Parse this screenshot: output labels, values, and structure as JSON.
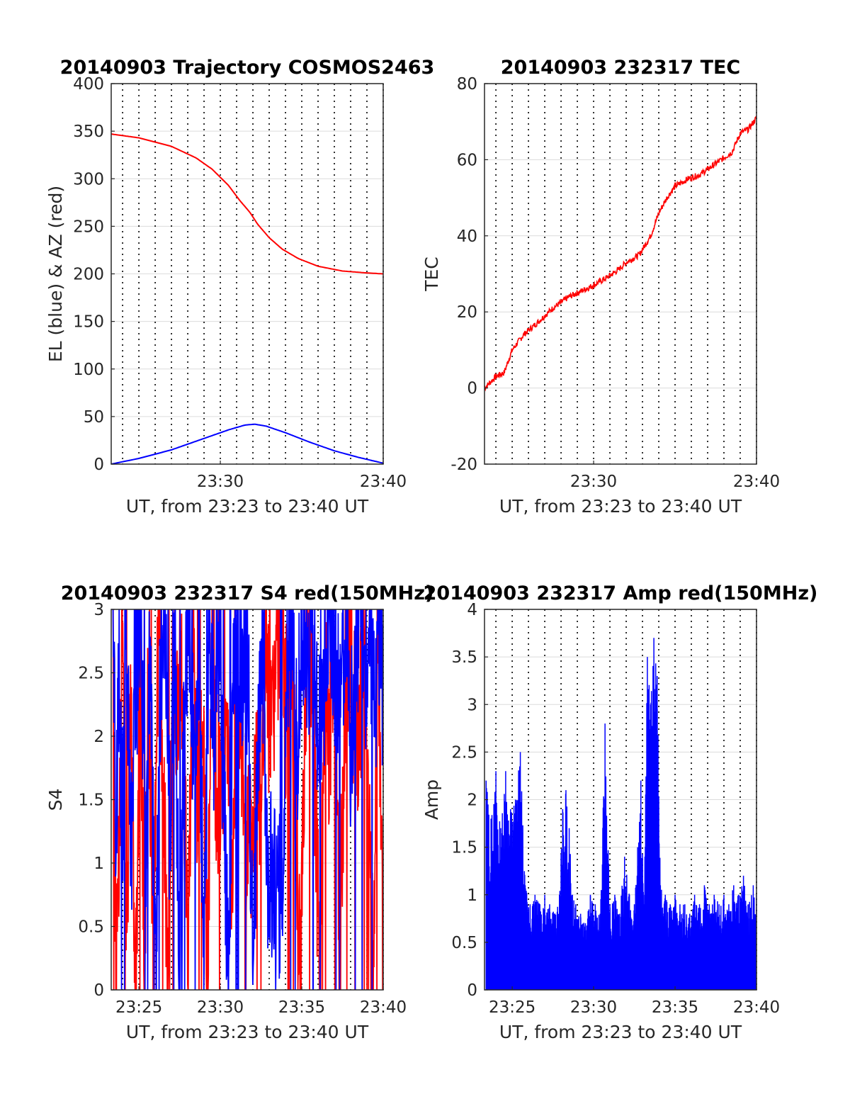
{
  "chart_data": [
    {
      "type": "line",
      "title": "20140903 Trajectory COSMOS2463",
      "xlabel": "UT, from 23:23 to 23:40 UT",
      "ylabel": "EL (blue) & AZ (red)",
      "x_ticks": [
        "23:30",
        "23:40"
      ],
      "x_tick_minutes": [
        30,
        40
      ],
      "xlim_minutes": [
        23.3,
        40
      ],
      "ylim": [
        0,
        400
      ],
      "y_ticks": [
        "0",
        "50",
        "100",
        "150",
        "200",
        "250",
        "300",
        "350",
        "400"
      ],
      "y_tick_values": [
        0,
        50,
        100,
        150,
        200,
        250,
        300,
        350,
        400
      ],
      "grid": true,
      "series": [
        {
          "color": "#ff0000",
          "x": [
            23.3,
            25,
            27,
            28.5,
            29.5,
            30.5,
            31.2,
            31.8,
            32.3,
            33,
            33.8,
            34.8,
            36,
            37.5,
            39,
            40
          ],
          "values": [
            347,
            343,
            334,
            322,
            310,
            293,
            277,
            265,
            252,
            238,
            226,
            216,
            208,
            203,
            201,
            200
          ]
        },
        {
          "color": "#0000ff",
          "x": [
            23.3,
            25,
            27,
            29,
            30.5,
            31.5,
            32.1,
            32.8,
            34,
            35.5,
            37,
            38.5,
            40
          ],
          "values": [
            0,
            6,
            15,
            27,
            36,
            41,
            42,
            40,
            33,
            23,
            14,
            7,
            1
          ]
        }
      ]
    },
    {
      "type": "line",
      "title": "20140903 232317 TEC",
      "xlabel": "UT, from 23:23 to 23:40 UT",
      "ylabel": "TEC",
      "x_ticks": [
        "23:30",
        "23:40"
      ],
      "x_tick_minutes": [
        30,
        40
      ],
      "xlim_minutes": [
        23.3,
        40
      ],
      "ylim": [
        -20,
        80
      ],
      "y_ticks": [
        "-20",
        "0",
        "20",
        "40",
        "60",
        "80"
      ],
      "y_tick_values": [
        -20,
        0,
        20,
        40,
        60,
        80
      ],
      "grid": true,
      "series": [
        {
          "color": "#ff0000",
          "x": [
            23.3,
            24,
            24.5,
            25,
            25.7,
            26.5,
            27.5,
            28.5,
            29.5,
            30,
            30.8,
            31.5,
            32,
            32.8,
            33.5,
            34,
            34.5,
            35,
            35.8,
            36.5,
            37.5,
            38.5,
            39,
            39.5,
            40
          ],
          "values": [
            0,
            3,
            4,
            10,
            14,
            17,
            21,
            24,
            26,
            27,
            29,
            31,
            33,
            35,
            40,
            46,
            50,
            53,
            55,
            56,
            59,
            62,
            67,
            68,
            71
          ]
        }
      ]
    },
    {
      "type": "line",
      "title": "20140903 232317 S4 red(150MHz)",
      "xlabel": "UT, from 23:23 to 23:40 UT",
      "ylabel": "S4",
      "x_ticks": [
        "23:25",
        "23:30",
        "23:35",
        "23:40"
      ],
      "x_tick_minutes": [
        25,
        30,
        35,
        40
      ],
      "xlim_minutes": [
        23.3,
        40
      ],
      "ylim": [
        0,
        3
      ],
      "y_ticks": [
        "0",
        "0.5",
        "1",
        "1.5",
        "2",
        "2.5",
        "3"
      ],
      "y_tick_values": [
        0,
        0.5,
        1,
        1.5,
        2,
        2.5,
        3
      ],
      "grid": true,
      "series": [
        {
          "color": "#ff0000",
          "x": [
            23.4,
            23.6,
            23.8,
            24,
            24.2,
            24.5,
            24.8,
            25.1,
            25.3,
            25.6,
            25.9,
            26.2,
            26.5,
            26.8,
            27.1,
            27.4,
            27.7,
            28,
            28.3,
            28.6,
            28.9,
            29.2,
            29.5,
            29.8,
            30.1,
            30.4,
            30.7,
            31,
            31.3,
            31.6,
            31.9,
            32.2,
            32.5,
            32.8,
            33.1,
            33.4,
            33.7,
            34,
            34.3,
            34.6,
            34.9,
            35.2,
            35.5,
            35.8,
            36.1,
            36.4,
            36.7,
            37,
            37.3,
            37.6,
            37.9,
            38.2,
            38.5,
            38.8,
            39.1,
            39.4,
            39.7,
            40
          ],
          "values": [
            2.8,
            0,
            1.5,
            3,
            0,
            2.6,
            0,
            3,
            0.1,
            2.5,
            0,
            3,
            1.8,
            0,
            2.7,
            1.9,
            2.4,
            0,
            3,
            1.4,
            2.1,
            0.2,
            2.6,
            1.3,
            1.7,
            2.2,
            1.1,
            1.6,
            1.9,
            1.3,
            1.0,
            1.8,
            1.5,
            2.6,
            1.9,
            2.4,
            3,
            2.1,
            2.9,
            1.6,
            0,
            2.3,
            3,
            1.7,
            0,
            2.5,
            1.9,
            2.8,
            0.3,
            1.7,
            2.6,
            2.2,
            1.9,
            2.7,
            1.5,
            0,
            3,
            0
          ],
          "mark_label_values": true
        },
        {
          "color": "#0000ff",
          "x": [
            23.4,
            23.6,
            23.8,
            24,
            24.2,
            24.5,
            24.8,
            25.1,
            25.4,
            25.7,
            26,
            26.3,
            26.6,
            26.9,
            27.2,
            27.5,
            27.8,
            28.1,
            28.4,
            28.7,
            29,
            29.3,
            29.6,
            29.9,
            30.2,
            30.5,
            30.8,
            31.1,
            31.4,
            31.7,
            32,
            32.3,
            32.6,
            32.9,
            33.2,
            33.5,
            33.8,
            34.1,
            34.4,
            34.7,
            35,
            35.3,
            35.6,
            35.9,
            36.2,
            36.5,
            36.8,
            37.1,
            37.4,
            37.7,
            38,
            38.3,
            38.6,
            38.9,
            39.2,
            39.5,
            39.8,
            40
          ],
          "values": [
            3,
            1.3,
            2.5,
            1.1,
            3,
            1.0,
            2.2,
            3,
            1.1,
            2.8,
            0,
            2.4,
            3,
            1.2,
            2.9,
            0,
            2.6,
            3,
            1.5,
            2.7,
            0,
            3,
            2.1,
            2.8,
            1.6,
            0,
            2.4,
            3,
            2.2,
            2.6,
            0,
            1.9,
            2.7,
            1.0,
            0.8,
            0.7,
            0.9,
            2.6,
            3,
            1.8,
            2.9,
            2.1,
            3,
            2.3,
            1.9,
            2.8,
            3,
            2.2,
            2.5,
            3,
            1.9,
            2.7,
            3,
            2.4,
            2.8,
            2.2,
            3,
            2.1
          ],
          "mark_label_values": true
        }
      ]
    },
    {
      "type": "line",
      "title": "20140903 232317 Amp red(150MHz)",
      "xlabel": "UT, from 23:23 to 23:40 UT",
      "ylabel": "Amp",
      "x_ticks": [
        "23:25",
        "23:30",
        "23:35",
        "23:40"
      ],
      "x_tick_minutes": [
        25,
        30,
        35,
        40
      ],
      "xlim_minutes": [
        23.3,
        40
      ],
      "ylim": [
        0,
        4
      ],
      "y_ticks": [
        "0",
        "0.5",
        "1",
        "1.5",
        "2",
        "2.5",
        "3",
        "3.5",
        "4"
      ],
      "y_tick_values": [
        0,
        0.5,
        1,
        1.5,
        2,
        2.5,
        3,
        3.5,
        4
      ],
      "grid": true,
      "series": [
        {
          "color": "#0000ff",
          "x": [
            23.4,
            23.7,
            24.0,
            24.3,
            24.6,
            24.9,
            25.2,
            25.5,
            25.8,
            26.1,
            26.4,
            26.7,
            27.0,
            27.3,
            27.6,
            27.9,
            28.1,
            28.3,
            28.5,
            28.7,
            28.9,
            29.2,
            29.5,
            29.8,
            30.1,
            30.4,
            30.7,
            31.0,
            31.3,
            31.6,
            31.9,
            32.2,
            32.5,
            32.7,
            32.9,
            33.1,
            33.3,
            33.5,
            33.7,
            33.9,
            34.1,
            34.4,
            34.7,
            35.0,
            35.3,
            35.6,
            35.9,
            36.2,
            36.5,
            36.8,
            37.1,
            37.4,
            37.7,
            38.0,
            38.3,
            38.6,
            38.9,
            39.2,
            39.5,
            39.8,
            40.0
          ],
          "peaks": [
            2.2,
            1.8,
            2.3,
            1.7,
            2.3,
            1.9,
            2.0,
            2.5,
            1.1,
            0.9,
            1.0,
            0.9,
            1.0,
            0.9,
            0.8,
            1.0,
            1.9,
            2.1,
            1.7,
            1.0,
            0.9,
            0.8,
            0.7,
            1.0,
            0.9,
            0.8,
            2.8,
            0.9,
            1.0,
            0.8,
            1.4,
            1.0,
            0.9,
            1.5,
            2.2,
            0.9,
            3.5,
            3.0,
            3.7,
            3.3,
            1.1,
            1.0,
            0.9,
            1.0,
            0.9,
            0.9,
            0.8,
            1.0,
            0.9,
            1.1,
            0.9,
            1.0,
            0.9,
            1.0,
            0.9,
            1.1,
            1.0,
            1.2,
            0.9,
            1.1,
            1.0
          ]
        }
      ]
    }
  ]
}
